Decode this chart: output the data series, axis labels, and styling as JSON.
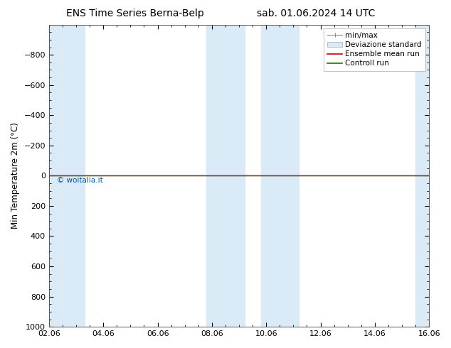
{
  "title_left": "ENS Time Series Berna-Belp",
  "title_right": "sab. 01.06.2024 14 UTC",
  "ylabel": "Min Temperature 2m (°C)",
  "xlim": [
    0,
    14
  ],
  "ylim_bottom": 1000,
  "ylim_top": -1000,
  "yticks": [
    -800,
    -600,
    -400,
    -200,
    0,
    200,
    400,
    600,
    800,
    1000
  ],
  "xtick_labels": [
    "02.06",
    "04.06",
    "06.06",
    "08.06",
    "10.06",
    "12.06",
    "14.06",
    "16.06"
  ],
  "xtick_positions": [
    0,
    2,
    4,
    6,
    8,
    10,
    12,
    14
  ],
  "background_color": "#ffffff",
  "plot_bg_color": "#ffffff",
  "shaded_bands": [
    {
      "x_start": 0.0,
      "x_end": 1.3
    },
    {
      "x_start": 5.8,
      "x_end": 7.2
    },
    {
      "x_start": 7.8,
      "x_end": 9.2
    },
    {
      "x_start": 13.5,
      "x_end": 14.0
    }
  ],
  "shaded_color": "#daeaf7",
  "ensemble_mean_color": "#cc0000",
  "control_run_color": "#336600",
  "ensemble_mean_y": 0,
  "control_run_y": 0,
  "watermark": "© woitalia.it",
  "watermark_color": "#0055aa",
  "legend_labels": [
    "min/max",
    "Deviazione standard",
    "Ensemble mean run",
    "Controll run"
  ],
  "title_fontsize": 10,
  "axis_fontsize": 8.5,
  "tick_fontsize": 8,
  "legend_fontsize": 7.5
}
